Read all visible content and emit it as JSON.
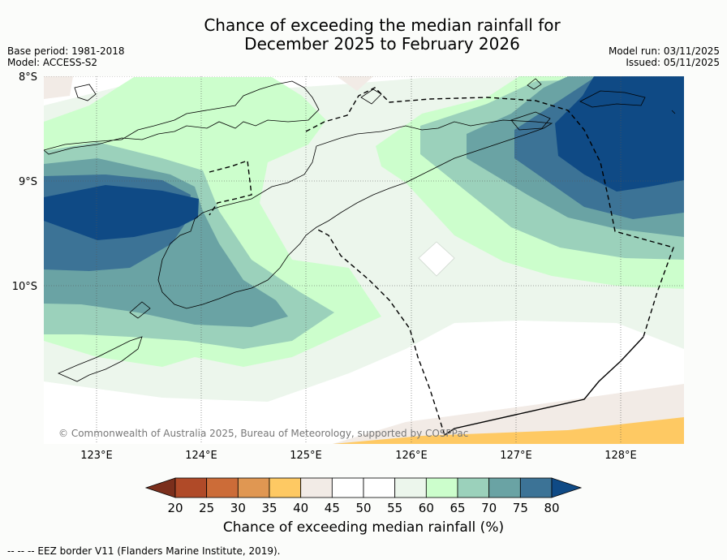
{
  "title_line1": "Chance of exceeding the median rainfall for",
  "title_line2": "December 2025 to February 2026",
  "base_period": "Base period: 1981-2018",
  "model": "Model: ACCESS-S2",
  "model_run": "Model run: 03/11/2025",
  "issued": "Issued: 05/11/2025",
  "lat_labels": [
    "8°S",
    "9°S",
    "10°S"
  ],
  "lon_labels": [
    "123°E",
    "124°E",
    "125°E",
    "126°E",
    "127°E",
    "128°E"
  ],
  "copyright": "© Commonwealth of Australia 2025, Bureau of Meteorology, supported by COSPPac",
  "colorbar": {
    "ticks": [
      "20",
      "25",
      "30",
      "35",
      "40",
      "45",
      "50",
      "55",
      "60",
      "65",
      "70",
      "75",
      "80"
    ],
    "colors": [
      "#7b2f1c",
      "#b04a28",
      "#cc6c38",
      "#e09752",
      "#fec963",
      "#f2ebe6",
      "#ffffff",
      "#ffffff",
      "#ecf6ec",
      "#ccfecc",
      "#9bd1bb",
      "#6aa3a4",
      "#3c7396",
      "#0f4a85"
    ],
    "title": "Chance of exceeding median rainfall (%)"
  },
  "footer": "--  --  -- EEZ border V11 (Flanders Marine Institute, 2019)."
}
